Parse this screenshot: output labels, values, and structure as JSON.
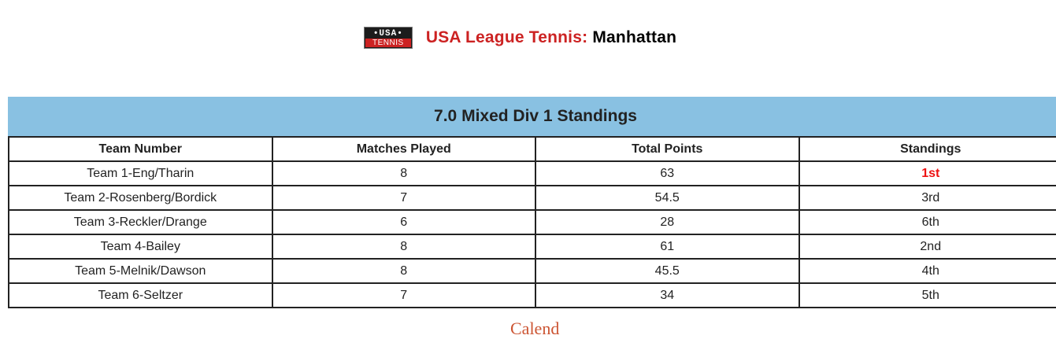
{
  "header": {
    "logo_top": "•USA•",
    "logo_bottom": "TENNIS",
    "title_prefix": "USA League Tennis:",
    "title_city": "Manhattan"
  },
  "standings": {
    "title": "7.0 Mixed Div 1 Standings",
    "columns": [
      "Team Number",
      "Matches Played",
      "Total Points",
      "Standings"
    ],
    "rows": [
      [
        "Team 1-Eng/Tharin",
        "8",
        "63",
        "1st"
      ],
      [
        "Team 2-Rosenberg/Bordick",
        "7",
        "54.5",
        "3rd"
      ],
      [
        "Team 3-Reckler/Drange",
        "6",
        "28",
        "6th"
      ],
      [
        "Team 4-Bailey",
        "8",
        "61",
        "2nd"
      ],
      [
        "Team 5-Melnik/Dawson",
        "8",
        "45.5",
        "4th"
      ],
      [
        "Team 6-Seltzer",
        "7",
        "34",
        "5th"
      ]
    ]
  },
  "footer": {
    "link_partial": "Calend"
  },
  "colors": {
    "brand_red": "#cc2222",
    "header_blue": "#89c1e2",
    "first_place": "#ee1111"
  }
}
